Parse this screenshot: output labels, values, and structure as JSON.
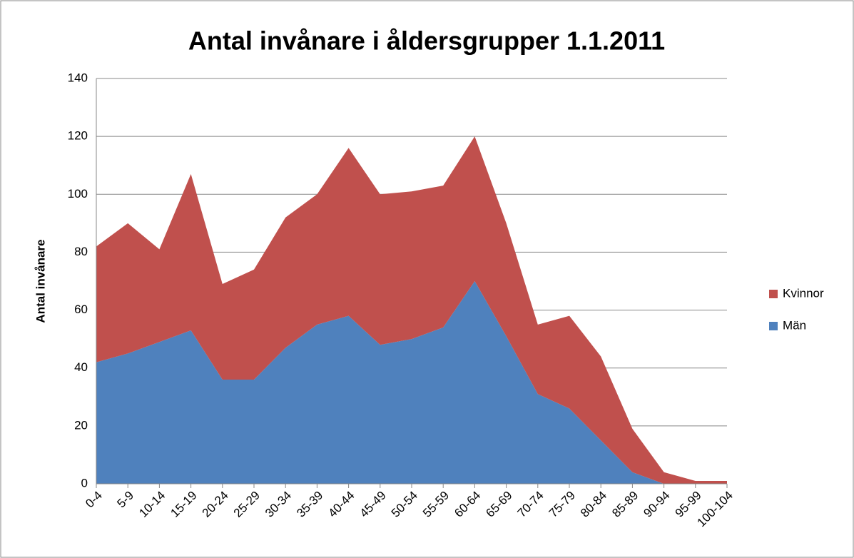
{
  "chart_data": {
    "type": "area",
    "stacked": true,
    "title": "Antal invånare i åldersgrupper 1.1.2011",
    "y_label": "Antal invånare",
    "categories": [
      "0-4",
      "5-9",
      "10-14",
      "15-19",
      "20-24",
      "25-29",
      "30-34",
      "35-39",
      "40-44",
      "45-49",
      "50-54",
      "55-59",
      "60-64",
      "65-69",
      "70-74",
      "75-79",
      "80-84",
      "85-89",
      "90-94",
      "95-99",
      "100-104"
    ],
    "series": [
      {
        "name": "Män",
        "color": "#4f81bd",
        "values": [
          42,
          45,
          49,
          53,
          36,
          36,
          47,
          55,
          58,
          48,
          50,
          54,
          70,
          51,
          31,
          26,
          15,
          4,
          0,
          0,
          0
        ]
      },
      {
        "name": "Kvinnor",
        "color": "#c0504d",
        "values": [
          40,
          45,
          32,
          54,
          33,
          38,
          45,
          45,
          58,
          52,
          51,
          49,
          50,
          39,
          24,
          32,
          29,
          15,
          4,
          1,
          1
        ]
      }
    ],
    "ylim": [
      0,
      140
    ],
    "yticks": [
      0,
      20,
      40,
      60,
      80,
      100,
      120,
      140
    ],
    "grid": true,
    "legend": "right"
  }
}
